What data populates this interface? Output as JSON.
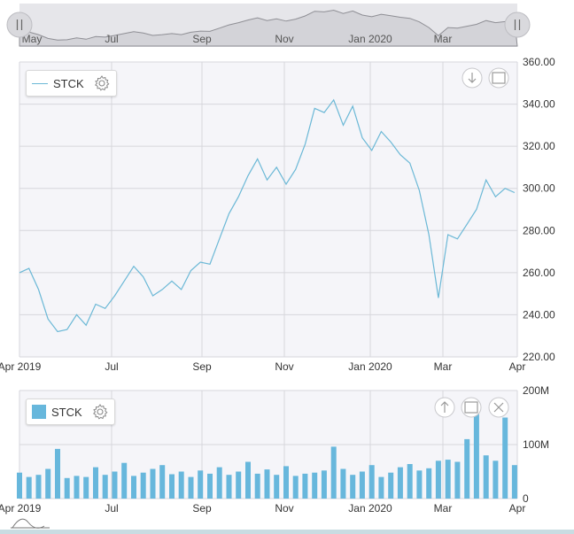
{
  "chart_data": [
    {
      "type": "line",
      "chart": "navigator",
      "x_tick_labels": [
        "May",
        "Jul",
        "Sep",
        "Nov",
        "Jan 2020",
        "Mar"
      ]
    },
    {
      "type": "line",
      "chart": "price",
      "series": [
        {
          "name": "STCK",
          "color": "#6bb8d6",
          "x": [
            "2019-04-01",
            "2019-04-08",
            "2019-04-15",
            "2019-04-22",
            "2019-04-29",
            "2019-05-06",
            "2019-05-13",
            "2019-05-20",
            "2019-05-27",
            "2019-06-03",
            "2019-06-10",
            "2019-06-17",
            "2019-06-24",
            "2019-07-01",
            "2019-07-08",
            "2019-07-15",
            "2019-07-22",
            "2019-07-29",
            "2019-08-05",
            "2019-08-12",
            "2019-08-19",
            "2019-08-26",
            "2019-09-02",
            "2019-09-09",
            "2019-09-16",
            "2019-09-23",
            "2019-09-30",
            "2019-10-07",
            "2019-10-14",
            "2019-10-21",
            "2019-10-28",
            "2019-11-04",
            "2019-11-11",
            "2019-11-18",
            "2019-11-25",
            "2019-12-02",
            "2019-12-09",
            "2019-12-16",
            "2019-12-23",
            "2019-12-30",
            "2020-01-06",
            "2020-01-13",
            "2020-01-20",
            "2020-01-27",
            "2020-02-03",
            "2020-02-10",
            "2020-02-17",
            "2020-02-24",
            "2020-03-02",
            "2020-03-09",
            "2020-03-16",
            "2020-03-23",
            "2020-03-30",
            "2020-04-06",
            "2020-04-13",
            "2020-04-20",
            "2020-04-27",
            "2020-05-04"
          ],
          "values": [
            260,
            262,
            252,
            238,
            232,
            233,
            240,
            235,
            245,
            243,
            249,
            256,
            263,
            258,
            249,
            252,
            256,
            252,
            261,
            265,
            264,
            276,
            288,
            296,
            306,
            314,
            304,
            310,
            302,
            309,
            321,
            338,
            336,
            342,
            330,
            339,
            324,
            318,
            327,
            322,
            316,
            312,
            299,
            278,
            248,
            278,
            276,
            283,
            290,
            304,
            296,
            300,
            298,
            300,
            297,
            298,
            296,
            294
          ]
        }
      ],
      "y_tick_labels": [
        "220.00",
        "240.00",
        "260.00",
        "280.00",
        "300.00",
        "320.00",
        "340.00",
        "360.00"
      ],
      "x_tick_labels": [
        "Apr 2019",
        "Jul",
        "Sep",
        "Nov",
        "Jan 2020",
        "Mar",
        "Apr"
      ],
      "ylim": [
        220,
        360
      ],
      "grid": true,
      "legend": "top-left"
    },
    {
      "type": "bar",
      "chart": "volume",
      "series": [
        {
          "name": "STCK",
          "color": "#67b7dc",
          "x": [
            "2019-04-01",
            "2019-04-08",
            "2019-04-15",
            "2019-04-22",
            "2019-04-29",
            "2019-05-06",
            "2019-05-13",
            "2019-05-20",
            "2019-05-27",
            "2019-06-03",
            "2019-06-10",
            "2019-06-17",
            "2019-06-24",
            "2019-07-01",
            "2019-07-08",
            "2019-07-15",
            "2019-07-22",
            "2019-07-29",
            "2019-08-05",
            "2019-08-12",
            "2019-08-19",
            "2019-08-26",
            "2019-09-02",
            "2019-09-09",
            "2019-09-16",
            "2019-09-23",
            "2019-09-30",
            "2019-10-07",
            "2019-10-14",
            "2019-10-21",
            "2019-10-28",
            "2019-11-04",
            "2019-11-11",
            "2019-11-18",
            "2019-11-25",
            "2019-12-02",
            "2019-12-09",
            "2019-12-16",
            "2019-12-23",
            "2019-12-30",
            "2020-01-06",
            "2020-01-13",
            "2020-01-20",
            "2020-01-27",
            "2020-02-03",
            "2020-02-10",
            "2020-02-17",
            "2020-02-24",
            "2020-03-02",
            "2020-03-09",
            "2020-03-16",
            "2020-03-23",
            "2020-03-30",
            "2020-04-06",
            "2020-04-13",
            "2020-04-20",
            "2020-04-27",
            "2020-05-04"
          ],
          "values": [
            48,
            40,
            44,
            55,
            92,
            38,
            42,
            40,
            58,
            44,
            50,
            66,
            42,
            48,
            55,
            62,
            45,
            50,
            40,
            52,
            46,
            58,
            44,
            50,
            68,
            46,
            54,
            44,
            60,
            42,
            46,
            48,
            52,
            96,
            55,
            44,
            50,
            62,
            40,
            48,
            58,
            64,
            52,
            56,
            70,
            72,
            68,
            110,
            160,
            80,
            70,
            150,
            62,
            58,
            50,
            74,
            118,
            54
          ]
        }
      ],
      "y_tick_labels": [
        "0",
        "100M",
        "200M"
      ],
      "x_tick_labels": [
        "Apr 2019",
        "Jul",
        "Sep",
        "Nov",
        "Jan 2020",
        "Mar",
        "Apr"
      ],
      "ylim": [
        0,
        200
      ],
      "grid": true,
      "legend": "top-left"
    }
  ],
  "legend": {
    "price_label": "STCK",
    "volume_label": "STCK"
  }
}
